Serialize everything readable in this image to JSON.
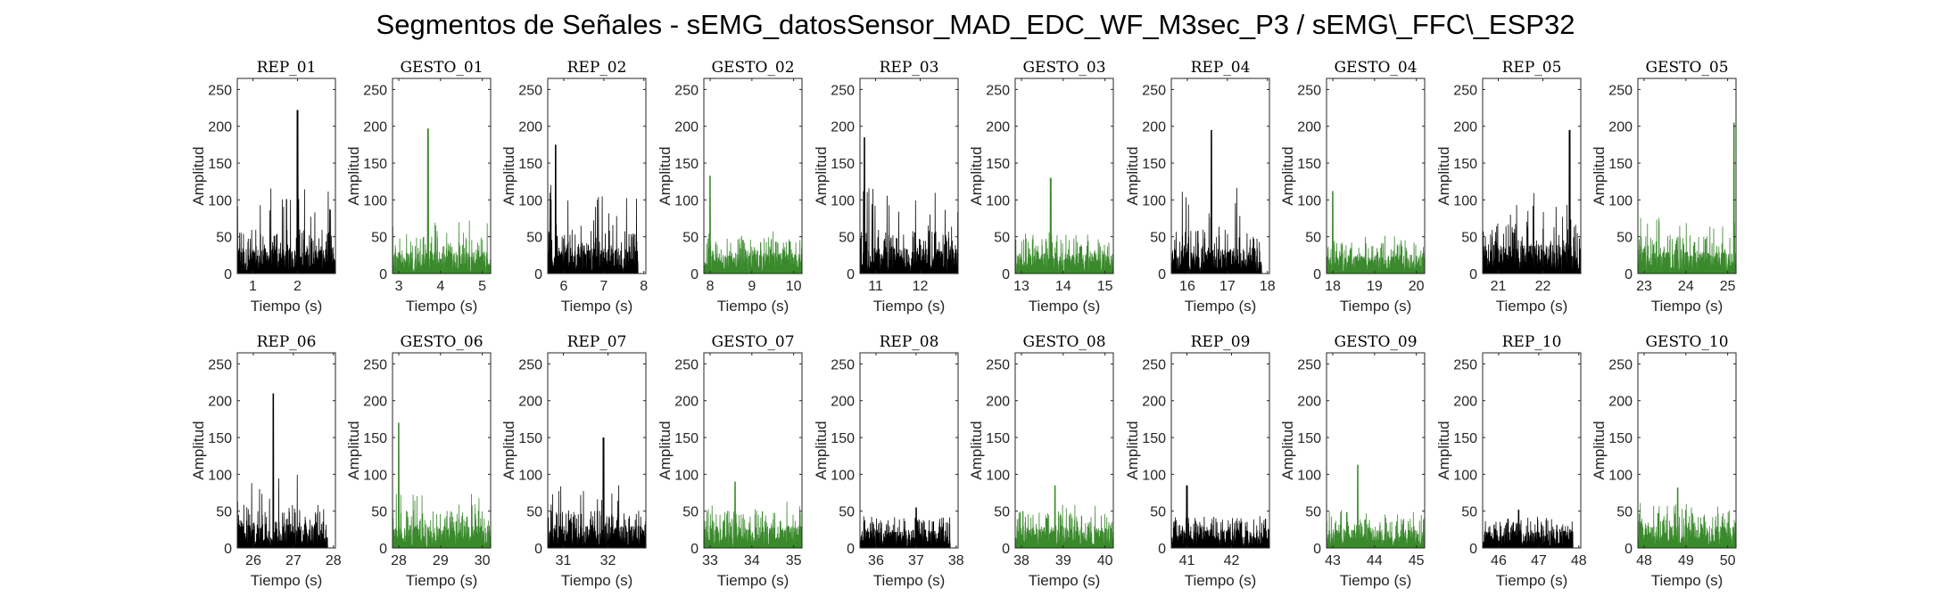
{
  "title": "Segmentos de Señales - sEMG_datosSensor_MAD_EDC_WF_M3sec_P3 / sEMG\\_FFC\\_ESP32",
  "colors": {
    "rep": "#000000",
    "gesto": "#3a8a2c",
    "axis": "#262626"
  },
  "chart_data": [
    {
      "type": "line",
      "title": "REP_01",
      "xlabel": "Tiempo (s)",
      "ylabel": "Amplitud",
      "xlim": [
        0.65,
        2.85
      ],
      "ylim": [
        0,
        265
      ],
      "xticks": [
        1,
        2
      ],
      "yticks": [
        0,
        50,
        100,
        150,
        200,
        250
      ],
      "grid": false,
      "color": "rep",
      "x_range": [
        0.65,
        2.85
      ],
      "baseline": 35,
      "typical_peak": 110,
      "max_peak": [
        2.0,
        222
      ],
      "signal": "dense sEMG trace, values between 0 and the envelope"
    },
    {
      "type": "line",
      "title": "GESTO_01",
      "xlabel": "Tiempo (s)",
      "ylabel": "Amplitud",
      "xlim": [
        2.85,
        5.2
      ],
      "ylim": [
        0,
        265
      ],
      "xticks": [
        3,
        4,
        5
      ],
      "yticks": [
        0,
        50,
        100,
        150,
        200,
        250
      ],
      "grid": false,
      "color": "gesto",
      "x_range": [
        2.85,
        5.2
      ],
      "baseline": 30,
      "typical_peak": 70,
      "max_peak": [
        3.7,
        197
      ],
      "signal": "dense sEMG trace"
    },
    {
      "type": "line",
      "title": "REP_02",
      "xlabel": "Tiempo (s)",
      "ylabel": "Amplitud",
      "xlim": [
        5.6,
        8.05
      ],
      "ylim": [
        0,
        265
      ],
      "xticks": [
        6,
        7,
        8
      ],
      "yticks": [
        0,
        50,
        100,
        150,
        200,
        250
      ],
      "grid": false,
      "color": "rep",
      "x_range": [
        5.6,
        7.85
      ],
      "baseline": 35,
      "typical_peak": 115,
      "max_peak": [
        5.8,
        175
      ],
      "signal": "dense sEMG trace"
    },
    {
      "type": "line",
      "title": "GESTO_02",
      "xlabel": "Tiempo (s)",
      "ylabel": "Amplitud",
      "xlim": [
        7.85,
        10.2
      ],
      "ylim": [
        0,
        265
      ],
      "xticks": [
        8,
        9,
        10
      ],
      "yticks": [
        0,
        50,
        100,
        150,
        200,
        250
      ],
      "grid": false,
      "color": "gesto",
      "x_range": [
        7.85,
        10.2
      ],
      "baseline": 28,
      "typical_peak": 55,
      "max_peak": [
        8.0,
        133
      ],
      "signal": "dense sEMG trace"
    },
    {
      "type": "line",
      "title": "REP_03",
      "xlabel": "Tiempo (s)",
      "ylabel": "Amplitud",
      "xlim": [
        10.65,
        12.85
      ],
      "ylim": [
        0,
        265
      ],
      "xticks": [
        11,
        12
      ],
      "yticks": [
        0,
        50,
        100,
        150,
        200,
        250
      ],
      "grid": false,
      "color": "rep",
      "x_range": [
        10.65,
        12.85
      ],
      "baseline": 35,
      "typical_peak": 115,
      "max_peak": [
        10.75,
        185
      ],
      "signal": "dense sEMG trace"
    },
    {
      "type": "line",
      "title": "GESTO_03",
      "xlabel": "Tiempo (s)",
      "ylabel": "Amplitud",
      "xlim": [
        12.85,
        15.2
      ],
      "ylim": [
        0,
        265
      ],
      "xticks": [
        13,
        14,
        15
      ],
      "yticks": [
        0,
        50,
        100,
        150,
        200,
        250
      ],
      "grid": false,
      "color": "gesto",
      "x_range": [
        12.85,
        15.2
      ],
      "baseline": 28,
      "typical_peak": 55,
      "max_peak": [
        13.7,
        130
      ],
      "signal": "dense sEMG trace"
    },
    {
      "type": "line",
      "title": "REP_04",
      "xlabel": "Tiempo (s)",
      "ylabel": "Amplitud",
      "xlim": [
        15.6,
        18.05
      ],
      "ylim": [
        0,
        265
      ],
      "xticks": [
        16,
        17,
        18
      ],
      "yticks": [
        0,
        50,
        100,
        150,
        200,
        250
      ],
      "grid": false,
      "color": "rep",
      "x_range": [
        15.6,
        17.85
      ],
      "baseline": 35,
      "typical_peak": 110,
      "max_peak": [
        16.6,
        195
      ],
      "signal": "dense sEMG trace"
    },
    {
      "type": "line",
      "title": "GESTO_04",
      "xlabel": "Tiempo (s)",
      "ylabel": "Amplitud",
      "xlim": [
        17.85,
        20.2
      ],
      "ylim": [
        0,
        265
      ],
      "xticks": [
        18,
        19,
        20
      ],
      "yticks": [
        0,
        50,
        100,
        150,
        200,
        250
      ],
      "grid": false,
      "color": "gesto",
      "x_range": [
        17.85,
        20.2
      ],
      "baseline": 25,
      "typical_peak": 50,
      "max_peak": [
        18.0,
        112
      ],
      "signal": "dense sEMG trace"
    },
    {
      "type": "line",
      "title": "REP_05",
      "xlabel": "Tiempo (s)",
      "ylabel": "Amplitud",
      "xlim": [
        20.65,
        22.85
      ],
      "ylim": [
        0,
        265
      ],
      "xticks": [
        21,
        22
      ],
      "yticks": [
        0,
        50,
        100,
        150,
        200,
        250
      ],
      "grid": false,
      "color": "rep",
      "x_range": [
        20.65,
        22.85
      ],
      "baseline": 40,
      "typical_peak": 120,
      "max_peak": [
        22.6,
        195
      ],
      "signal": "dense sEMG trace"
    },
    {
      "type": "line",
      "title": "GESTO_05",
      "xlabel": "Tiempo (s)",
      "ylabel": "Amplitud",
      "xlim": [
        22.85,
        25.2
      ],
      "ylim": [
        0,
        265
      ],
      "xticks": [
        23,
        24,
        25
      ],
      "yticks": [
        0,
        50,
        100,
        150,
        200,
        250
      ],
      "grid": false,
      "color": "gesto",
      "x_range": [
        22.85,
        25.2
      ],
      "baseline": 30,
      "typical_peak": 75,
      "max_peak": [
        25.15,
        205
      ],
      "signal": "dense sEMG trace"
    },
    {
      "type": "line",
      "title": "REP_06",
      "xlabel": "Tiempo (s)",
      "ylabel": "Amplitud",
      "xlim": [
        25.6,
        28.05
      ],
      "ylim": [
        0,
        265
      ],
      "xticks": [
        26,
        27,
        28
      ],
      "yticks": [
        0,
        50,
        100,
        150,
        200,
        250
      ],
      "grid": false,
      "color": "rep",
      "x_range": [
        25.6,
        27.85
      ],
      "baseline": 35,
      "typical_peak": 100,
      "max_peak": [
        26.5,
        210
      ],
      "signal": "dense sEMG trace"
    },
    {
      "type": "line",
      "title": "GESTO_06",
      "xlabel": "Tiempo (s)",
      "ylabel": "Amplitud",
      "xlim": [
        27.85,
        30.2
      ],
      "ylim": [
        0,
        265
      ],
      "xticks": [
        28,
        29,
        30
      ],
      "yticks": [
        0,
        50,
        100,
        150,
        200,
        250
      ],
      "grid": false,
      "color": "gesto",
      "x_range": [
        27.85,
        30.2
      ],
      "baseline": 30,
      "typical_peak": 70,
      "max_peak": [
        28.0,
        170
      ],
      "signal": "dense sEMG trace"
    },
    {
      "type": "line",
      "title": "REP_07",
      "xlabel": "Tiempo (s)",
      "ylabel": "Amplitud",
      "xlim": [
        30.65,
        32.85
      ],
      "ylim": [
        0,
        265
      ],
      "xticks": [
        31,
        32
      ],
      "yticks": [
        0,
        50,
        100,
        150,
        200,
        250
      ],
      "grid": false,
      "color": "rep",
      "x_range": [
        30.65,
        32.85
      ],
      "baseline": 30,
      "typical_peak": 85,
      "max_peak": [
        31.9,
        150
      ],
      "signal": "dense sEMG trace"
    },
    {
      "type": "line",
      "title": "GESTO_07",
      "xlabel": "Tiempo (s)",
      "ylabel": "Amplitud",
      "xlim": [
        32.85,
        35.2
      ],
      "ylim": [
        0,
        265
      ],
      "xticks": [
        33,
        34,
        35
      ],
      "yticks": [
        0,
        50,
        100,
        150,
        200,
        250
      ],
      "grid": false,
      "color": "gesto",
      "x_range": [
        32.85,
        35.2
      ],
      "baseline": 30,
      "typical_peak": 60,
      "max_peak": [
        33.6,
        90
      ],
      "signal": "dense sEMG trace"
    },
    {
      "type": "line",
      "title": "REP_08",
      "xlabel": "Tiempo (s)",
      "ylabel": "Amplitud",
      "xlim": [
        35.6,
        38.05
      ],
      "ylim": [
        0,
        265
      ],
      "xticks": [
        36,
        37,
        38
      ],
      "yticks": [
        0,
        50,
        100,
        150,
        200,
        250
      ],
      "grid": false,
      "color": "rep",
      "x_range": [
        35.6,
        37.85
      ],
      "baseline": 25,
      "typical_peak": 42,
      "max_peak": [
        37.0,
        55
      ],
      "signal": "dense sEMG trace"
    },
    {
      "type": "line",
      "title": "GESTO_08",
      "xlabel": "Tiempo (s)",
      "ylabel": "Amplitud",
      "xlim": [
        37.85,
        40.2
      ],
      "ylim": [
        0,
        265
      ],
      "xticks": [
        38,
        39,
        40
      ],
      "yticks": [
        0,
        50,
        100,
        150,
        200,
        250
      ],
      "grid": false,
      "color": "gesto",
      "x_range": [
        37.85,
        40.2
      ],
      "baseline": 30,
      "typical_peak": 60,
      "max_peak": [
        38.8,
        85
      ],
      "signal": "dense sEMG trace"
    },
    {
      "type": "line",
      "title": "REP_09",
      "xlabel": "Tiempo (s)",
      "ylabel": "Amplitud",
      "xlim": [
        40.65,
        42.85
      ],
      "ylim": [
        0,
        265
      ],
      "xticks": [
        41,
        42
      ],
      "yticks": [
        0,
        50,
        100,
        150,
        200,
        250
      ],
      "grid": false,
      "color": "rep",
      "x_range": [
        40.65,
        42.85
      ],
      "baseline": 25,
      "typical_peak": 42,
      "max_peak": [
        41.0,
        85
      ],
      "signal": "dense sEMG trace"
    },
    {
      "type": "line",
      "title": "GESTO_09",
      "xlabel": "Tiempo (s)",
      "ylabel": "Amplitud",
      "xlim": [
        42.85,
        45.2
      ],
      "ylim": [
        0,
        265
      ],
      "xticks": [
        43,
        44,
        45
      ],
      "yticks": [
        0,
        50,
        100,
        150,
        200,
        250
      ],
      "grid": false,
      "color": "gesto",
      "x_range": [
        42.85,
        45.2
      ],
      "baseline": 25,
      "typical_peak": 50,
      "max_peak": [
        43.6,
        113
      ],
      "signal": "dense sEMG trace"
    },
    {
      "type": "line",
      "title": "REP_10",
      "xlabel": "Tiempo (s)",
      "ylabel": "Amplitud",
      "xlim": [
        45.6,
        48.05
      ],
      "ylim": [
        0,
        265
      ],
      "xticks": [
        46,
        47,
        48
      ],
      "yticks": [
        0,
        50,
        100,
        150,
        200,
        250
      ],
      "grid": false,
      "color": "rep",
      "x_range": [
        45.6,
        47.85
      ],
      "baseline": 25,
      "typical_peak": 38,
      "max_peak": [
        46.5,
        52
      ],
      "signal": "dense sEMG trace"
    },
    {
      "type": "line",
      "title": "GESTO_10",
      "xlabel": "Tiempo (s)",
      "ylabel": "Amplitud",
      "xlim": [
        47.85,
        50.2
      ],
      "ylim": [
        0,
        265
      ],
      "xticks": [
        48,
        49,
        50
      ],
      "yticks": [
        0,
        50,
        100,
        150,
        200,
        250
      ],
      "grid": false,
      "color": "gesto",
      "x_range": [
        47.85,
        50.2
      ],
      "baseline": 30,
      "typical_peak": 60,
      "max_peak": [
        48.8,
        82
      ],
      "signal": "dense sEMG trace"
    }
  ]
}
